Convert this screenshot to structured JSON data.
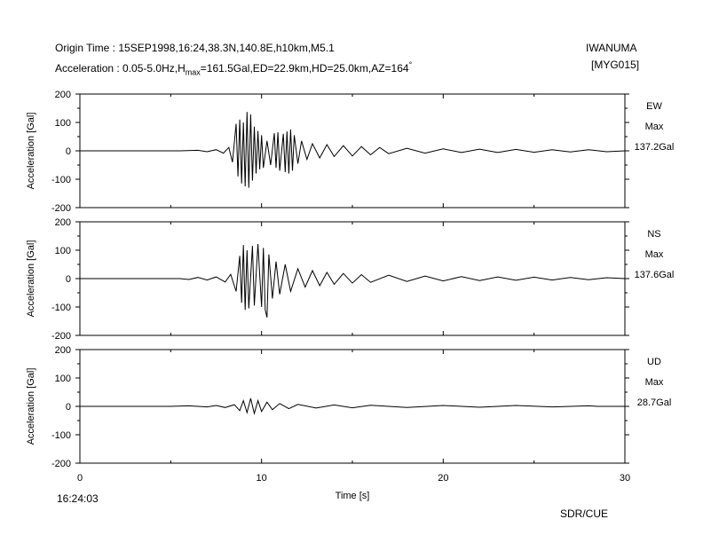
{
  "header": {
    "line1": "Origin Time : 15SEP1998,16:24,38.3N,140.8E,h10km,M5.1",
    "line2_pre": "Acceleration : 0.05-5.0Hz,H",
    "line2_sub": "max",
    "line2_post": "=161.5Gal,ED=22.9km,HD=25.0km,AZ=164",
    "line2_deg": "°",
    "station_name": "IWANUMA",
    "station_code": "[MYG015]"
  },
  "footer": {
    "start_time": "16:24:03",
    "credit": "SDR/CUE"
  },
  "chart_data": {
    "type": "line",
    "xlabel": "Time [s]",
    "ylabel": "Acceleration [Gal]",
    "xlim": [
      0,
      30
    ],
    "ylim": [
      -200,
      200
    ],
    "xticks": [
      0,
      10,
      20,
      30
    ],
    "yticks": [
      200,
      100,
      0,
      -100,
      -200
    ],
    "grid": false,
    "panels": [
      {
        "component": "EW",
        "max_label": "Max",
        "max_value": "137.2Gal",
        "points": [
          [
            0,
            0
          ],
          [
            5.5,
            0
          ],
          [
            6.5,
            2
          ],
          [
            7.0,
            -3
          ],
          [
            7.5,
            4
          ],
          [
            7.9,
            -8
          ],
          [
            8.2,
            12
          ],
          [
            8.4,
            -40
          ],
          [
            8.6,
            95
          ],
          [
            8.7,
            -90
          ],
          [
            8.8,
            110
          ],
          [
            8.9,
            -115
          ],
          [
            9.0,
            100
          ],
          [
            9.1,
            -125
          ],
          [
            9.2,
            137
          ],
          [
            9.3,
            -130
          ],
          [
            9.4,
            128
          ],
          [
            9.5,
            -105
          ],
          [
            9.6,
            85
          ],
          [
            9.7,
            -80
          ],
          [
            9.8,
            70
          ],
          [
            9.9,
            -65
          ],
          [
            10.0,
            55
          ],
          [
            10.1,
            -60
          ],
          [
            10.3,
            35
          ],
          [
            10.5,
            -50
          ],
          [
            10.7,
            62
          ],
          [
            10.8,
            -60
          ],
          [
            10.9,
            65
          ],
          [
            11.0,
            -70
          ],
          [
            11.2,
            60
          ],
          [
            11.3,
            -75
          ],
          [
            11.4,
            68
          ],
          [
            11.5,
            -80
          ],
          [
            11.6,
            75
          ],
          [
            11.7,
            -70
          ],
          [
            11.8,
            55
          ],
          [
            12.0,
            -45
          ],
          [
            12.2,
            35
          ],
          [
            12.5,
            -30
          ],
          [
            12.8,
            25
          ],
          [
            13.2,
            -25
          ],
          [
            13.6,
            22
          ],
          [
            14.0,
            -20
          ],
          [
            14.5,
            18
          ],
          [
            15.0,
            -18
          ],
          [
            15.5,
            15
          ],
          [
            16.0,
            -14
          ],
          [
            16.5,
            12
          ],
          [
            17.0,
            -10
          ],
          [
            18.0,
            9
          ],
          [
            19.0,
            -8
          ],
          [
            20.0,
            7
          ],
          [
            21.0,
            -6
          ],
          [
            22.0,
            6
          ],
          [
            23.0,
            -6
          ],
          [
            24.0,
            5
          ],
          [
            25.0,
            -5
          ],
          [
            26.0,
            4
          ],
          [
            27.0,
            -4
          ],
          [
            28.0,
            4
          ],
          [
            29.0,
            -3
          ],
          [
            30.0,
            0
          ]
        ]
      },
      {
        "component": "NS",
        "max_label": "Max",
        "max_value": "137.6Gal",
        "points": [
          [
            0,
            0
          ],
          [
            5.5,
            0
          ],
          [
            6.0,
            -3
          ],
          [
            6.5,
            4
          ],
          [
            7.0,
            -5
          ],
          [
            7.5,
            6
          ],
          [
            8.0,
            -12
          ],
          [
            8.3,
            15
          ],
          [
            8.6,
            -45
          ],
          [
            8.8,
            80
          ],
          [
            8.9,
            -85
          ],
          [
            9.0,
            118
          ],
          [
            9.1,
            -110
          ],
          [
            9.2,
            100
          ],
          [
            9.3,
            -105
          ],
          [
            9.5,
            115
          ],
          [
            9.6,
            -95
          ],
          [
            9.8,
            122
          ],
          [
            10.0,
            -100
          ],
          [
            10.1,
            108
          ],
          [
            10.2,
            -110
          ],
          [
            10.3,
            -137
          ],
          [
            10.4,
            85
          ],
          [
            10.6,
            -70
          ],
          [
            10.8,
            60
          ],
          [
            11.0,
            -55
          ],
          [
            11.3,
            50
          ],
          [
            11.6,
            -45
          ],
          [
            12.0,
            35
          ],
          [
            12.4,
            -30
          ],
          [
            12.8,
            28
          ],
          [
            13.2,
            -25
          ],
          [
            13.6,
            22
          ],
          [
            14.0,
            -20
          ],
          [
            14.5,
            18
          ],
          [
            15.0,
            -16
          ],
          [
            15.5,
            14
          ],
          [
            16.0,
            -13
          ],
          [
            17.0,
            12
          ],
          [
            18.0,
            -10
          ],
          [
            19.0,
            9
          ],
          [
            20.0,
            -8
          ],
          [
            21.0,
            7
          ],
          [
            22.0,
            -7
          ],
          [
            23.0,
            6
          ],
          [
            24.0,
            -6
          ],
          [
            25.0,
            5
          ],
          [
            26.0,
            -5
          ],
          [
            27.0,
            4
          ],
          [
            28.0,
            -4
          ],
          [
            29.0,
            3
          ],
          [
            30.0,
            0
          ]
        ]
      },
      {
        "component": "UD",
        "max_label": "Max",
        "max_value": "28.7Gal",
        "points": [
          [
            0,
            0
          ],
          [
            5.0,
            0
          ],
          [
            6.0,
            2
          ],
          [
            7.0,
            -2
          ],
          [
            7.5,
            3
          ],
          [
            8.0,
            -4
          ],
          [
            8.5,
            6
          ],
          [
            8.8,
            -15
          ],
          [
            9.0,
            20
          ],
          [
            9.2,
            -22
          ],
          [
            9.4,
            28
          ],
          [
            9.6,
            -25
          ],
          [
            9.8,
            20
          ],
          [
            10.0,
            -18
          ],
          [
            10.3,
            15
          ],
          [
            10.6,
            -12
          ],
          [
            11.0,
            10
          ],
          [
            11.5,
            -8
          ],
          [
            12.0,
            7
          ],
          [
            13.0,
            -6
          ],
          [
            14.0,
            5
          ],
          [
            15.0,
            -5
          ],
          [
            16.0,
            4
          ],
          [
            18.0,
            -4
          ],
          [
            20.0,
            3
          ],
          [
            22.0,
            -3
          ],
          [
            24.0,
            3
          ],
          [
            26.0,
            -2
          ],
          [
            28.0,
            2
          ],
          [
            28.5,
            0
          ],
          [
            30.0,
            0
          ]
        ]
      }
    ]
  }
}
